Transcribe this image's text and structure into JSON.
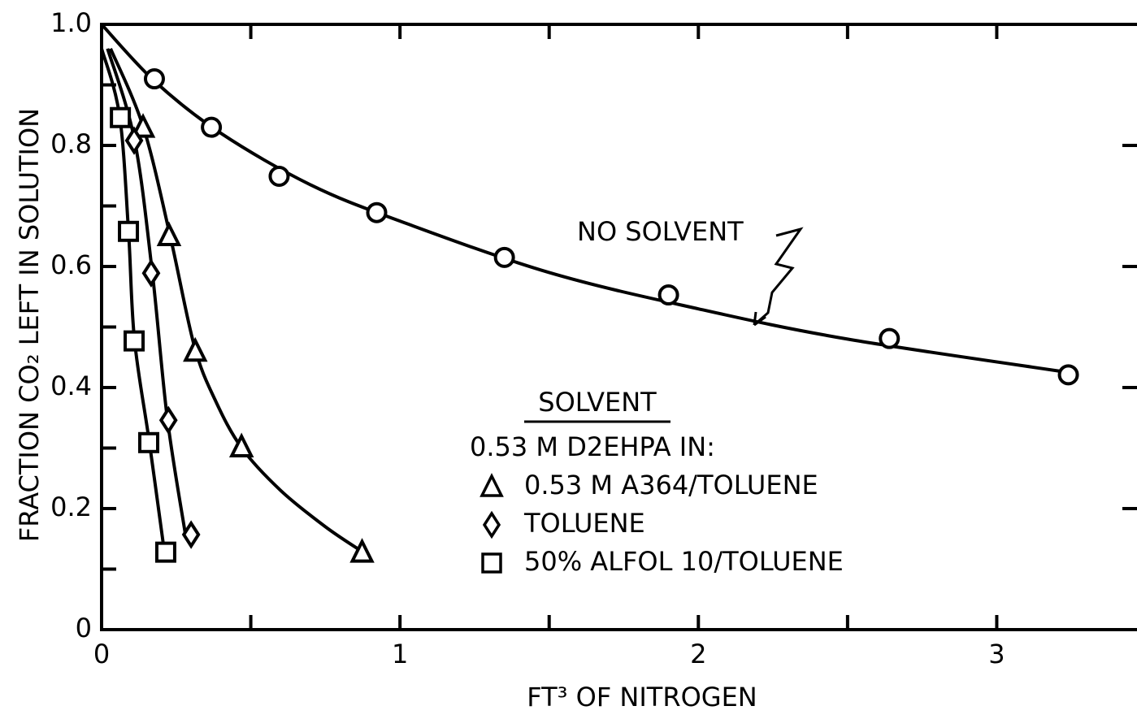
{
  "chart_data": {
    "type": "scatter",
    "xlabel": "FT³ OF NITROGEN",
    "ylabel": "FRACTION CO₂ LEFT IN SOLUTION",
    "xlim": [
      0,
      3.47
    ],
    "ylim": [
      0,
      1
    ],
    "xticks": [
      0,
      1,
      2,
      3
    ],
    "xminor": [
      0.5,
      1.5,
      2.5
    ],
    "yticks": [
      0,
      0.2,
      0.4,
      0.6,
      0.8,
      {
        "value": 1,
        "label": "1.0"
      }
    ],
    "yminor": [
      0.1,
      0.3,
      0.5,
      0.7,
      0.9
    ],
    "legend_title": "SOLVENT",
    "legend_subtitle": "0.53 M D2EHPA IN:",
    "color": "#000000",
    "series": [
      {
        "name": "NO SOLVENT",
        "marker": "circle",
        "x": [
          0.177,
          0.368,
          0.595,
          0.922,
          1.35,
          1.9,
          2.64,
          3.24
        ],
        "values": [
          0.91,
          0.83,
          0.749,
          0.689,
          0.615,
          0.553,
          0.481,
          0.421
        ],
        "curve": {
          "x": [
            0,
            0.18,
            0.4,
            0.7,
            1.0,
            1.5,
            2.0,
            2.5,
            3.24
          ],
          "y": [
            1,
            0.905,
            0.82,
            0.735,
            0.675,
            0.59,
            0.53,
            0.48,
            0.425
          ]
        }
      },
      {
        "name": "0.53 M A364/TOLUENE",
        "marker": "triangle",
        "x": [
          0.139,
          0.226,
          0.314,
          0.469,
          0.873
        ],
        "values": [
          0.83,
          0.651,
          0.46,
          0.302,
          0.128
        ],
        "curve": {
          "x": [
            0.03,
            0.14,
            0.23,
            0.31,
            0.38,
            0.47,
            0.6,
            0.75,
            0.87
          ],
          "y": [
            0.96,
            0.83,
            0.65,
            0.47,
            0.38,
            0.3,
            0.23,
            0.17,
            0.13
          ]
        }
      },
      {
        "name": "TOLUENE",
        "marker": "diamond",
        "x": [
          0.109,
          0.166,
          0.224,
          0.3
        ],
        "values": [
          0.808,
          0.589,
          0.346,
          0.157
        ],
        "curve": {
          "x": [
            0.02,
            0.11,
            0.17,
            0.22,
            0.28
          ],
          "y": [
            0.96,
            0.81,
            0.59,
            0.35,
            0.16
          ]
        }
      },
      {
        "name": "50% ALFOL 10/TOLUENE",
        "marker": "square",
        "x": [
          0.063,
          0.09,
          0.109,
          0.158,
          0.215
        ],
        "values": [
          0.846,
          0.658,
          0.477,
          0.309,
          0.128
        ],
        "curve": {
          "x": [
            0,
            0.06,
            0.09,
            0.11,
            0.16,
            0.21
          ],
          "y": [
            0.96,
            0.85,
            0.66,
            0.48,
            0.31,
            0.13
          ]
        }
      }
    ]
  }
}
